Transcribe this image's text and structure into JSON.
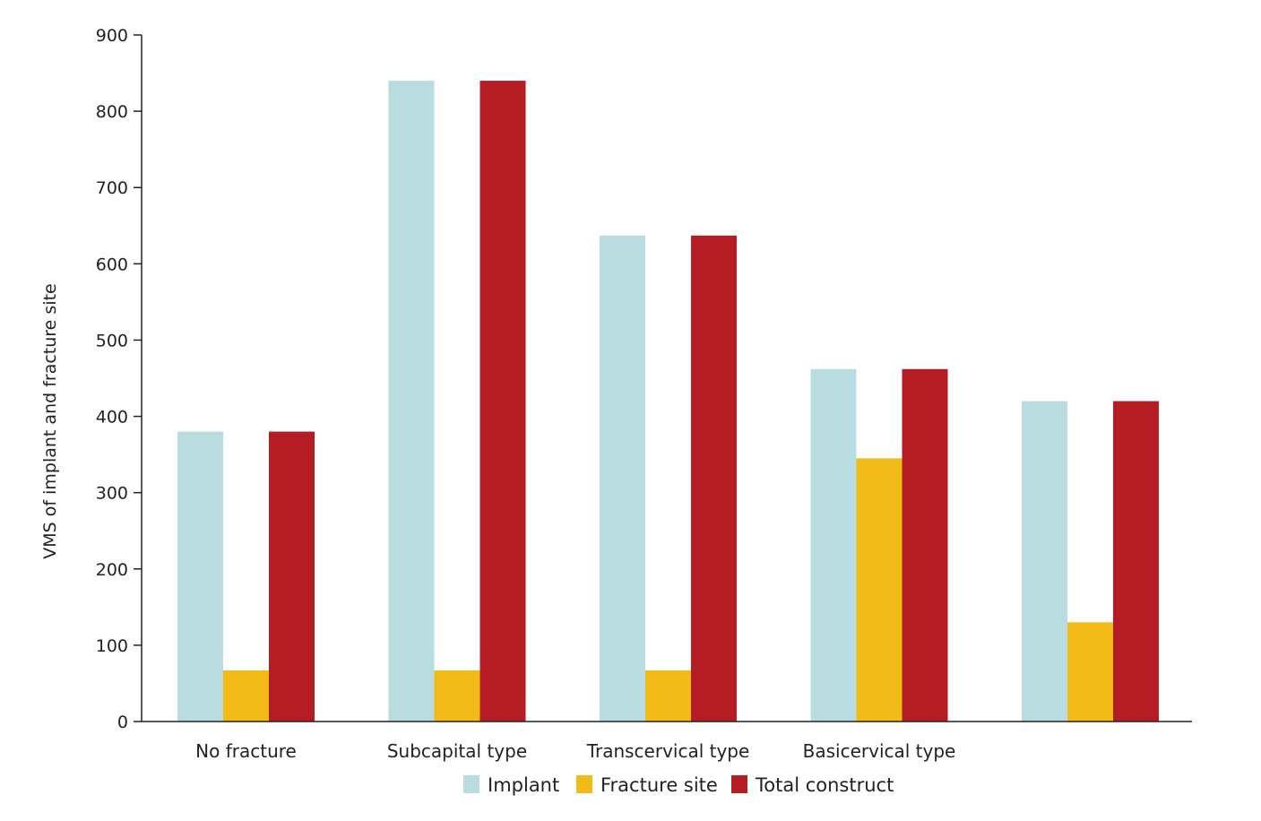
{
  "chart_data": {
    "type": "bar",
    "categories": [
      "No fracture",
      "Subcapital type",
      "Transcervical type",
      "Basicervical type",
      ""
    ],
    "series": [
      {
        "name": "Implant",
        "color": "#b8dcdf",
        "values": [
          380,
          840,
          637,
          462,
          420
        ]
      },
      {
        "name": "Fracture site",
        "color": "#f2bb17",
        "values": [
          67,
          67,
          67,
          345,
          130
        ]
      },
      {
        "name": "Total construct",
        "color": "#b51c24",
        "values": [
          380,
          840,
          637,
          462,
          420
        ]
      }
    ],
    "ylabel": "VMS of implant and fracture site",
    "xlabel": "",
    "ylim": [
      0,
      900
    ],
    "yticks": [
      0,
      100,
      200,
      300,
      400,
      500,
      600,
      700,
      800,
      900
    ],
    "grid": false,
    "legend_position": "bottom-center"
  }
}
